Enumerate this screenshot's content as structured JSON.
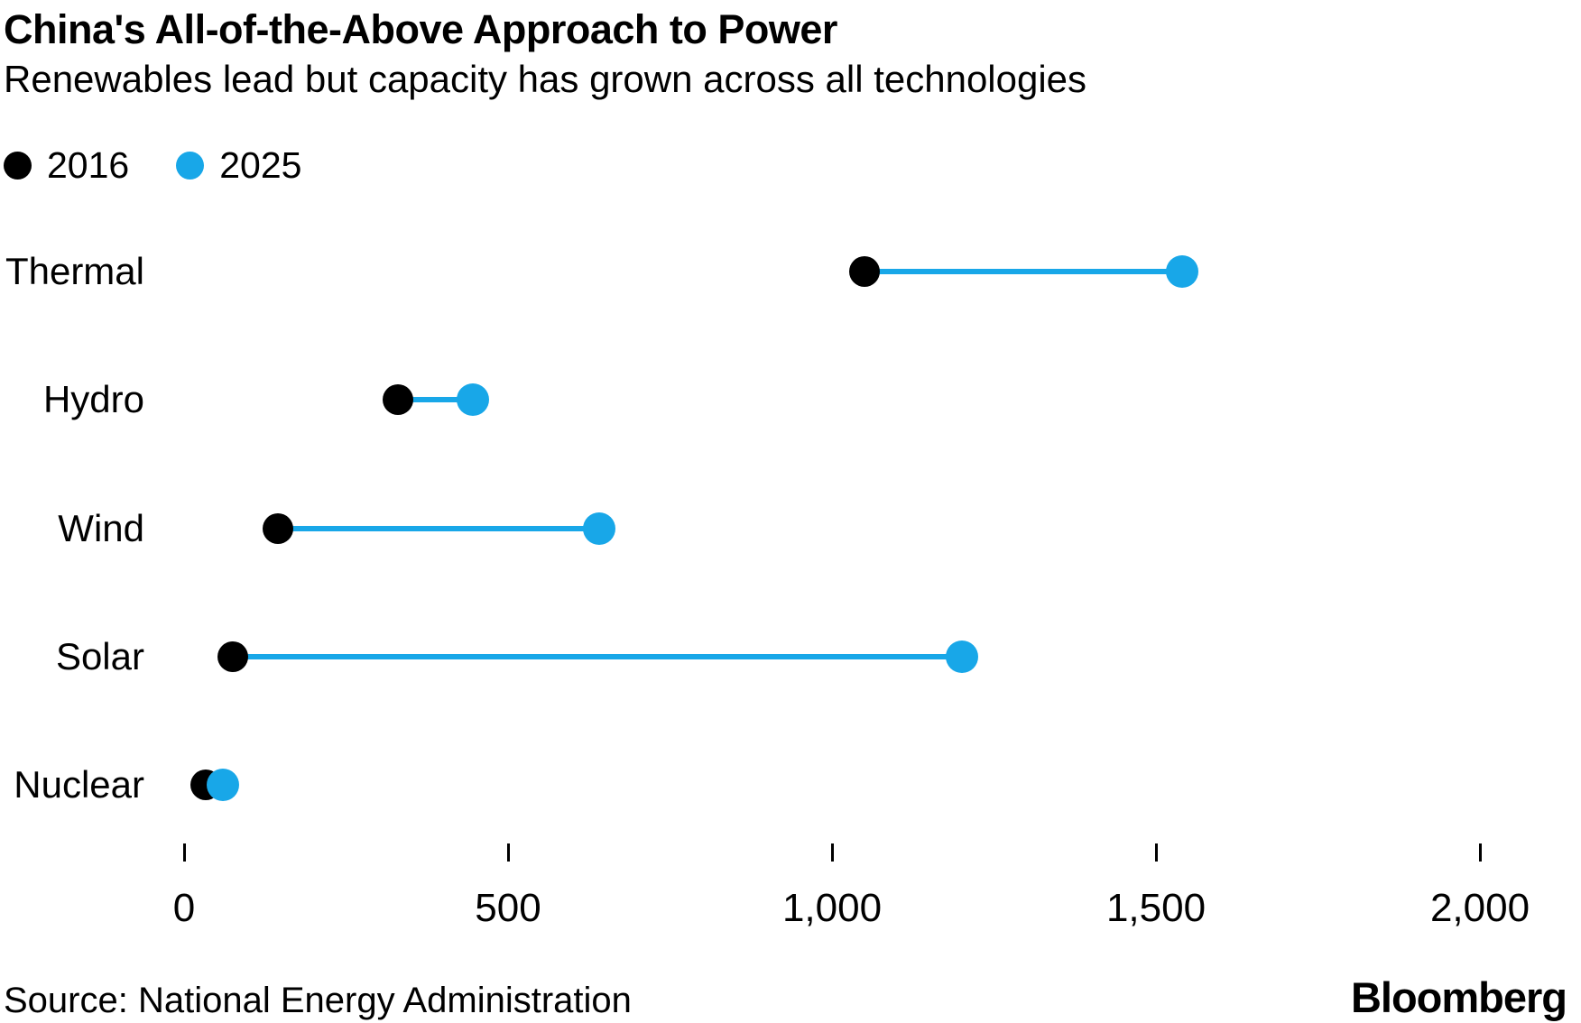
{
  "header": {
    "title": "China's All-of-the-Above Approach to Power",
    "subtitle": "Renewables lead but capacity has grown across all technologies"
  },
  "legend": [
    {
      "label": "2016",
      "color": "#000000"
    },
    {
      "label": "2025",
      "color": "#18a7e8"
    }
  ],
  "chart_data": {
    "type": "dumbbell",
    "title": "China's All-of-the-Above Approach to Power",
    "subtitle": "Renewables lead but capacity has grown across all technologies",
    "categories": [
      "Thermal",
      "Hydro",
      "Wind",
      "Solar",
      "Nuclear"
    ],
    "series": [
      {
        "name": "2016",
        "color": "#000000",
        "values": [
          1050,
          330,
          145,
          75,
          33
        ]
      },
      {
        "name": "2025",
        "color": "#18a7e8",
        "values": [
          1540,
          445,
          640,
          1200,
          60
        ]
      }
    ],
    "connector_color": "#18a7e8",
    "xlim": [
      0,
      2000
    ],
    "x_tick_values": [
      0,
      500,
      1000,
      1500,
      2000
    ],
    "x_tick_labels": [
      "0",
      "500",
      "1,000",
      "1,500",
      "2,000"
    ],
    "grid": false,
    "legend_position": "top-left"
  },
  "footer": {
    "source": "Source: National Energy Administration",
    "brand": "Bloomberg"
  },
  "colors": {
    "accent_blue": "#18a7e8",
    "black": "#000000",
    "background": "#ffffff"
  }
}
